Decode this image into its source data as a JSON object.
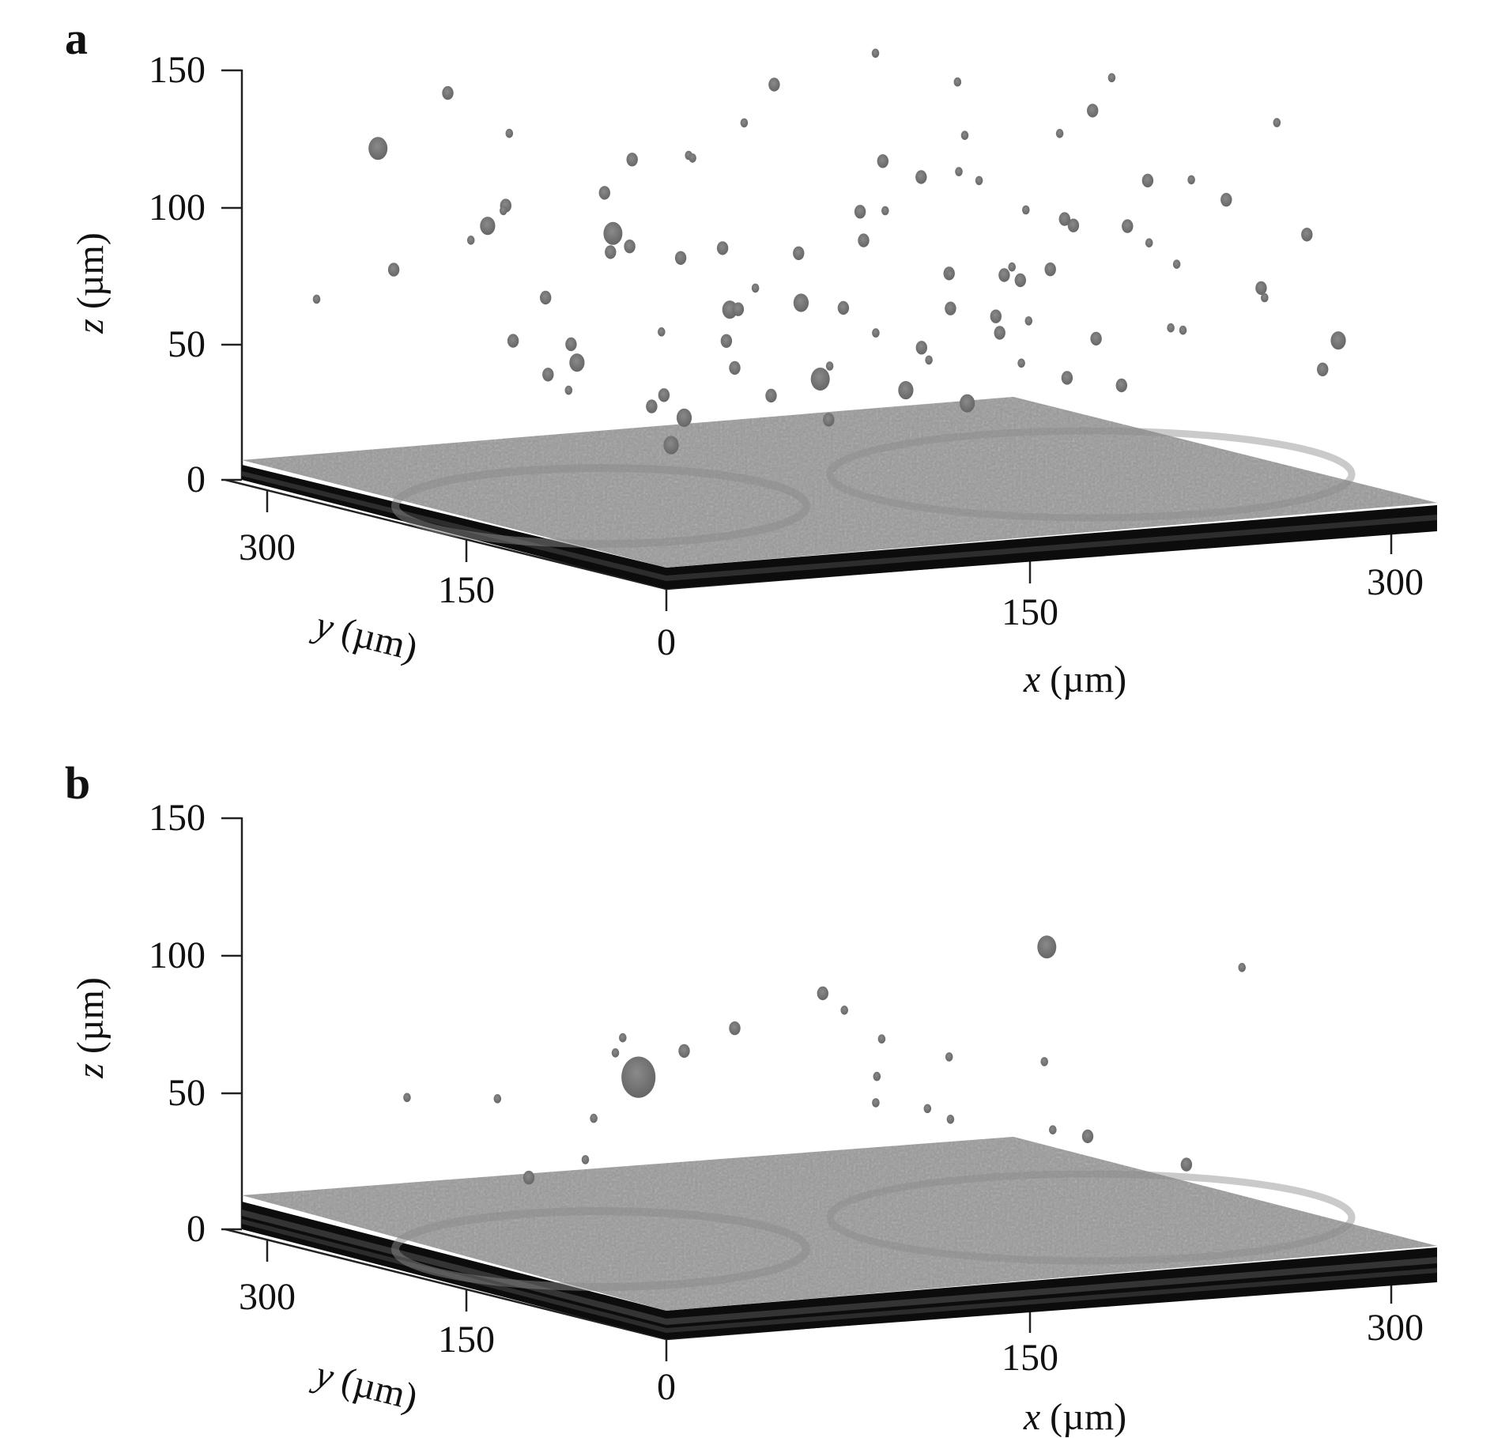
{
  "figure": {
    "panels": [
      {
        "label": "a"
      },
      {
        "label": "b"
      }
    ]
  },
  "chart_data": [
    {
      "panel": "a",
      "type": "scatter",
      "title": "",
      "xlabel": "x (µm)",
      "ylabel": "y (µm)",
      "zlabel": "z (µm)",
      "axes": {
        "x": {
          "var": "x",
          "unit": "(µm)",
          "ticks": [
            "0",
            "150",
            "300"
          ]
        },
        "y": {
          "var": "y",
          "unit": "(µm)",
          "ticks": [
            "300",
            "150"
          ]
        },
        "z": {
          "var": "z",
          "unit": "(µm)",
          "ticks": [
            "150",
            "100",
            "50",
            "0"
          ]
        }
      },
      "xlim": [
        0,
        320
      ],
      "ylim": [
        0,
        320
      ],
      "zlim": [
        0,
        150
      ],
      "colors": {
        "surface": "#9a9a9a",
        "particles": "#777777",
        "edge": "#0c0c0c"
      },
      "series": [
        {
          "points": [
            [
              40,
              290,
              115,
              5
            ],
            [
              60,
              230,
              100,
              3
            ],
            [
              80,
              280,
              85,
              4
            ],
            [
              60,
              200,
              70,
              3
            ],
            [
              110,
              240,
              85,
              5
            ],
            [
              120,
              170,
              65,
              4
            ],
            [
              140,
              200,
              60,
              3
            ],
            [
              150,
              230,
              78,
              3
            ],
            [
              90,
              150,
              30,
              4
            ],
            [
              100,
              130,
              50,
              3
            ],
            [
              130,
              120,
              45,
              5
            ],
            [
              160,
              110,
              40,
              4
            ],
            [
              170,
              160,
              88,
              3
            ],
            [
              190,
              180,
              95,
              2
            ],
            [
              200,
              150,
              75,
              3
            ],
            [
              210,
              130,
              55,
              3
            ],
            [
              180,
              100,
              35,
              4
            ],
            [
              150,
              80,
              60,
              3
            ],
            [
              120,
              60,
              70,
              2
            ],
            [
              140,
              40,
              80,
              3
            ],
            [
              160,
              30,
              95,
              2
            ],
            [
              180,
              60,
              85,
              3
            ],
            [
              200,
              90,
              65,
              2
            ],
            [
              220,
              110,
              80,
              3
            ],
            [
              230,
              70,
              100,
              3
            ],
            [
              250,
              90,
              90,
              2
            ],
            [
              240,
              40,
              120,
              2
            ],
            [
              260,
              50,
              110,
              3
            ],
            [
              270,
              30,
              140,
              2
            ],
            [
              280,
              60,
              75,
              3
            ],
            [
              290,
              20,
              60,
              4
            ],
            [
              300,
              50,
              45,
              3
            ],
            [
              310,
              80,
              90,
              3
            ],
            [
              270,
              110,
              55,
              2
            ],
            [
              250,
              130,
              50,
              3
            ],
            [
              230,
              150,
              40,
              2
            ],
            [
              60,
              120,
              40,
              3
            ],
            [
              40,
              140,
              55,
              4
            ],
            [
              30,
              170,
              60,
              3
            ],
            [
              50,
              180,
              45,
              3
            ],
            [
              20,
              110,
              50,
              2
            ],
            [
              10,
              90,
              70,
              3
            ],
            [
              200,
              20,
              50,
              3
            ],
            [
              220,
              10,
              70,
              2
            ],
            [
              180,
              20,
              110,
              3
            ],
            [
              160,
              70,
              125,
              2
            ],
            [
              130,
              90,
              110,
              3
            ],
            [
              110,
              100,
              95,
              3
            ],
            [
              100,
              80,
              80,
              4
            ],
            [
              80,
              100,
              65,
              3
            ],
            [
              70,
              60,
              90,
              2
            ],
            [
              50,
              80,
              100,
              3
            ],
            [
              200,
              200,
              110,
              3
            ],
            [
              240,
              200,
              100,
              2
            ],
            [
              270,
              190,
              85,
              3
            ],
            [
              300,
              160,
              70,
              2
            ],
            [
              320,
              130,
              60,
              2
            ],
            [
              310,
              200,
              95,
              3
            ],
            [
              170,
              250,
              120,
              2
            ],
            [
              140,
              280,
              105,
              3
            ],
            [
              100,
              300,
              115,
              2
            ],
            [
              80,
              310,
              130,
              3
            ],
            [
              120,
              20,
              65,
              2
            ],
            [
              90,
              30,
              85,
              3
            ],
            [
              60,
              30,
              55,
              3
            ],
            [
              35,
              60,
              35,
              4
            ],
            [
              20,
              40,
              80,
              2
            ],
            [
              10,
              20,
              60,
              3
            ],
            [
              250,
              240,
              60,
              2
            ],
            [
              280,
              260,
              40,
              3
            ],
            [
              290,
              230,
              110,
              2
            ],
            [
              260,
              280,
              90,
              3
            ],
            [
              230,
              260,
              140,
              2
            ],
            [
              210,
              300,
              125,
              3
            ],
            [
              180,
              310,
              100,
              2
            ],
            [
              150,
              300,
              70,
              3
            ],
            [
              190,
              120,
              130,
              2
            ],
            [
              210,
              60,
              145,
              3
            ],
            [
              240,
              100,
              150,
              2
            ],
            [
              220,
              180,
              140,
              2
            ],
            [
              110,
              180,
              120,
              2
            ],
            [
              90,
              210,
              105,
              3
            ],
            [
              70,
              250,
              95,
              2
            ],
            [
              120,
              260,
              75,
              3
            ],
            [
              40,
              220,
              90,
              2
            ],
            [
              30,
              260,
              75,
              3
            ],
            [
              20,
              300,
              60,
              2
            ],
            [
              300,
              290,
              50,
              3
            ],
            [
              320,
              310,
              70,
              2
            ],
            [
              150,
              150,
              25,
              3
            ],
            [
              200,
              240,
              30,
              2
            ],
            [
              260,
              170,
              30,
              3
            ]
          ]
        }
      ]
    },
    {
      "panel": "b",
      "type": "scatter",
      "title": "",
      "xlabel": "x (µm)",
      "ylabel": "y (µm)",
      "zlabel": "z (µm)",
      "axes": {
        "x": {
          "var": "x",
          "unit": "(µm)",
          "ticks": [
            "0",
            "150",
            "300"
          ]
        },
        "y": {
          "var": "y",
          "unit": "(µm)",
          "ticks": [
            "300",
            "150"
          ]
        },
        "z": {
          "var": "z",
          "unit": "(µm)",
          "ticks": [
            "150",
            "100",
            "50",
            "0"
          ]
        }
      },
      "xlim": [
        0,
        320
      ],
      "ylim": [
        0,
        320
      ],
      "zlim": [
        0,
        150
      ],
      "colors": {
        "surface": "#9a9a9a",
        "particles": "#777777",
        "edge": "#0c0c0c"
      },
      "series": [
        {
          "points": [
            [
              60,
              130,
              65,
              9
            ],
            [
              180,
              40,
              115,
              5
            ],
            [
              120,
              100,
              95,
              3
            ],
            [
              100,
              130,
              80,
              3
            ],
            [
              90,
              150,
              70,
              3
            ],
            [
              70,
              160,
              75,
              2
            ],
            [
              140,
              120,
              85,
              2
            ],
            [
              150,
              110,
              75,
              2
            ],
            [
              200,
              150,
              60,
              2
            ],
            [
              230,
              100,
              35,
              3
            ],
            [
              260,
              80,
              25,
              3
            ],
            [
              210,
              90,
              40,
              2
            ],
            [
              250,
              20,
              105,
              2
            ],
            [
              40,
              200,
              50,
              2
            ],
            [
              30,
              250,
              45,
              2
            ],
            [
              60,
              170,
              30,
              2
            ],
            [
              20,
              140,
              30,
              3
            ],
            [
              80,
              200,
              40,
              2
            ],
            [
              170,
              150,
              55,
              2
            ],
            [
              180,
              130,
              45,
              2
            ],
            [
              120,
              60,
              60,
              2
            ],
            [
              140,
              40,
              55,
              2
            ],
            [
              190,
              60,
              70,
              2
            ],
            [
              100,
              220,
              60,
              2
            ]
          ]
        }
      ]
    }
  ]
}
